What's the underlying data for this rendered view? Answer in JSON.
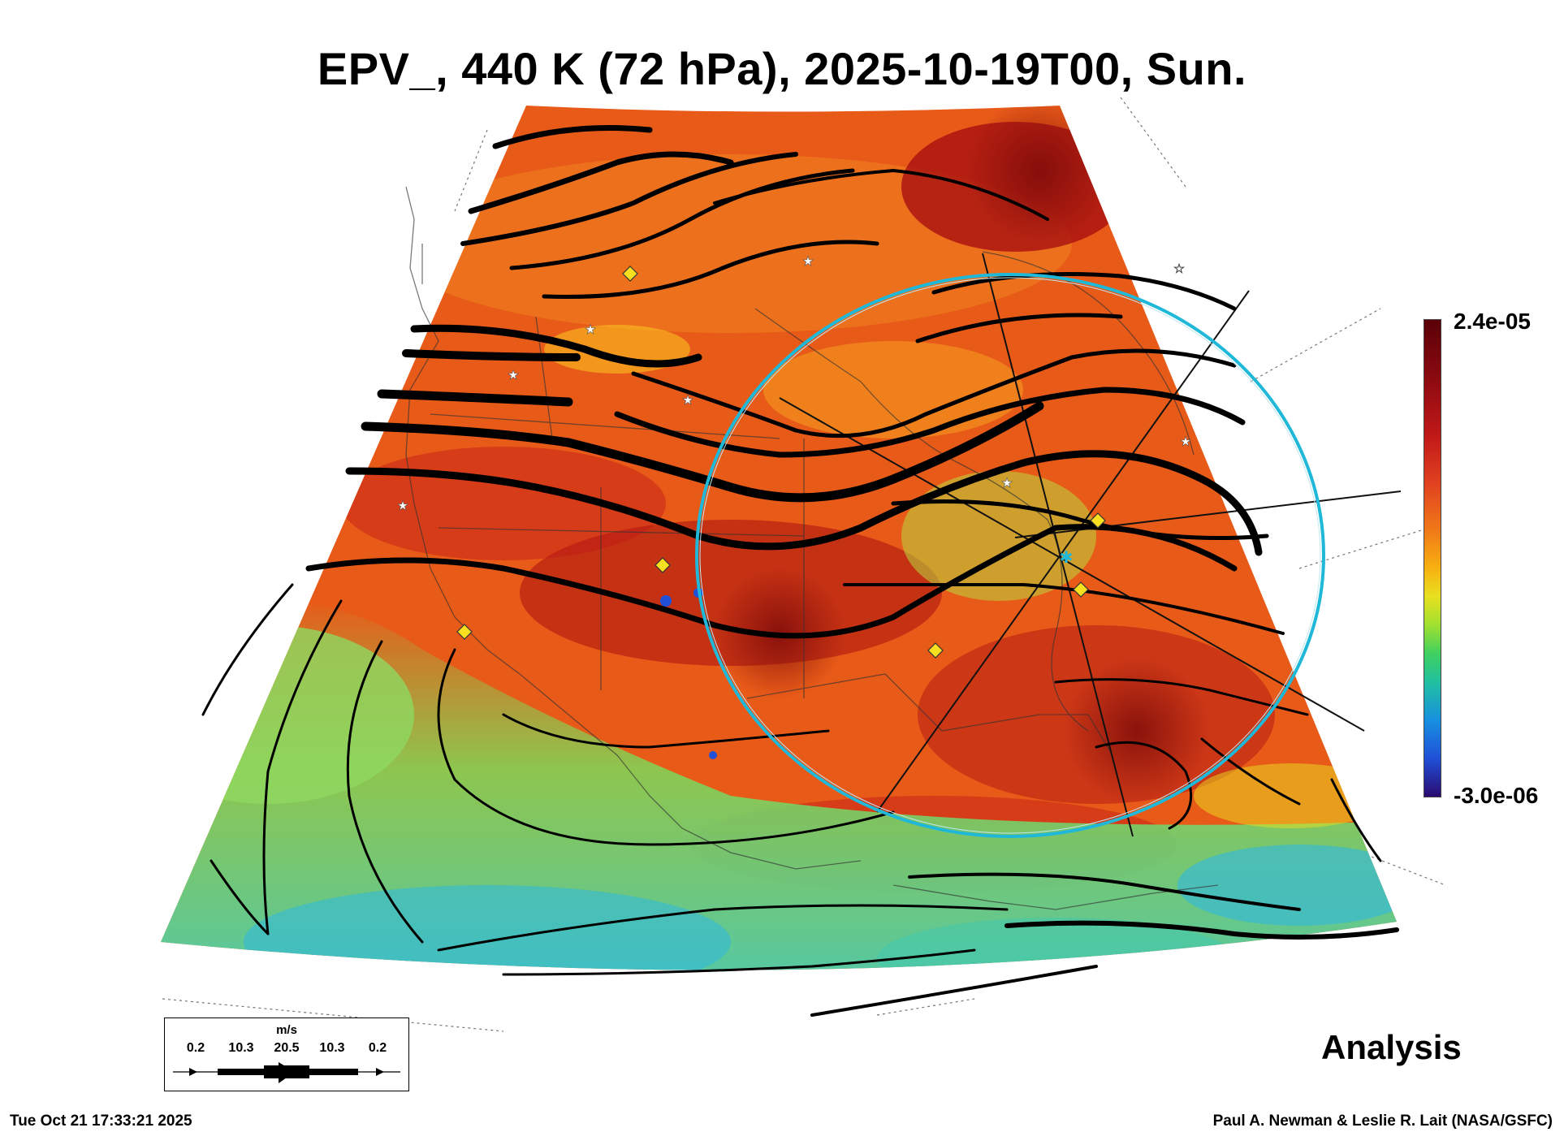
{
  "title": "EPV_, 440 K (72 hPa), 2025-10-19T00, Sun.",
  "colorbar": {
    "max_label": "2.4e-05",
    "min_label": "-3.0e-06",
    "colors": [
      "#5a0008",
      "#c01818",
      "#f07818",
      "#e8e020",
      "#40d060",
      "#1890e0",
      "#2a0a70"
    ]
  },
  "wind_legend": {
    "unit": "m/s",
    "ticks": [
      "0.2",
      "10.3",
      "20.5",
      "10.3",
      "0.2"
    ]
  },
  "analysis_label": "Analysis",
  "timestamp": "Tue Oct 21 17:33:21 2025",
  "credit": "Paul A. Newman & Leslie R. Lait (NASA/GSFC)",
  "map": {
    "field_colors": {
      "high": "#a81010",
      "mid_high": "#e85a18",
      "mid": "#f4a020",
      "low": "#7ed858",
      "lowest": "#30b8e0"
    },
    "eclipse_circle_color": "#20b8d8",
    "marker_color": "#f8e020",
    "station_marker_color": "#ffffff"
  }
}
